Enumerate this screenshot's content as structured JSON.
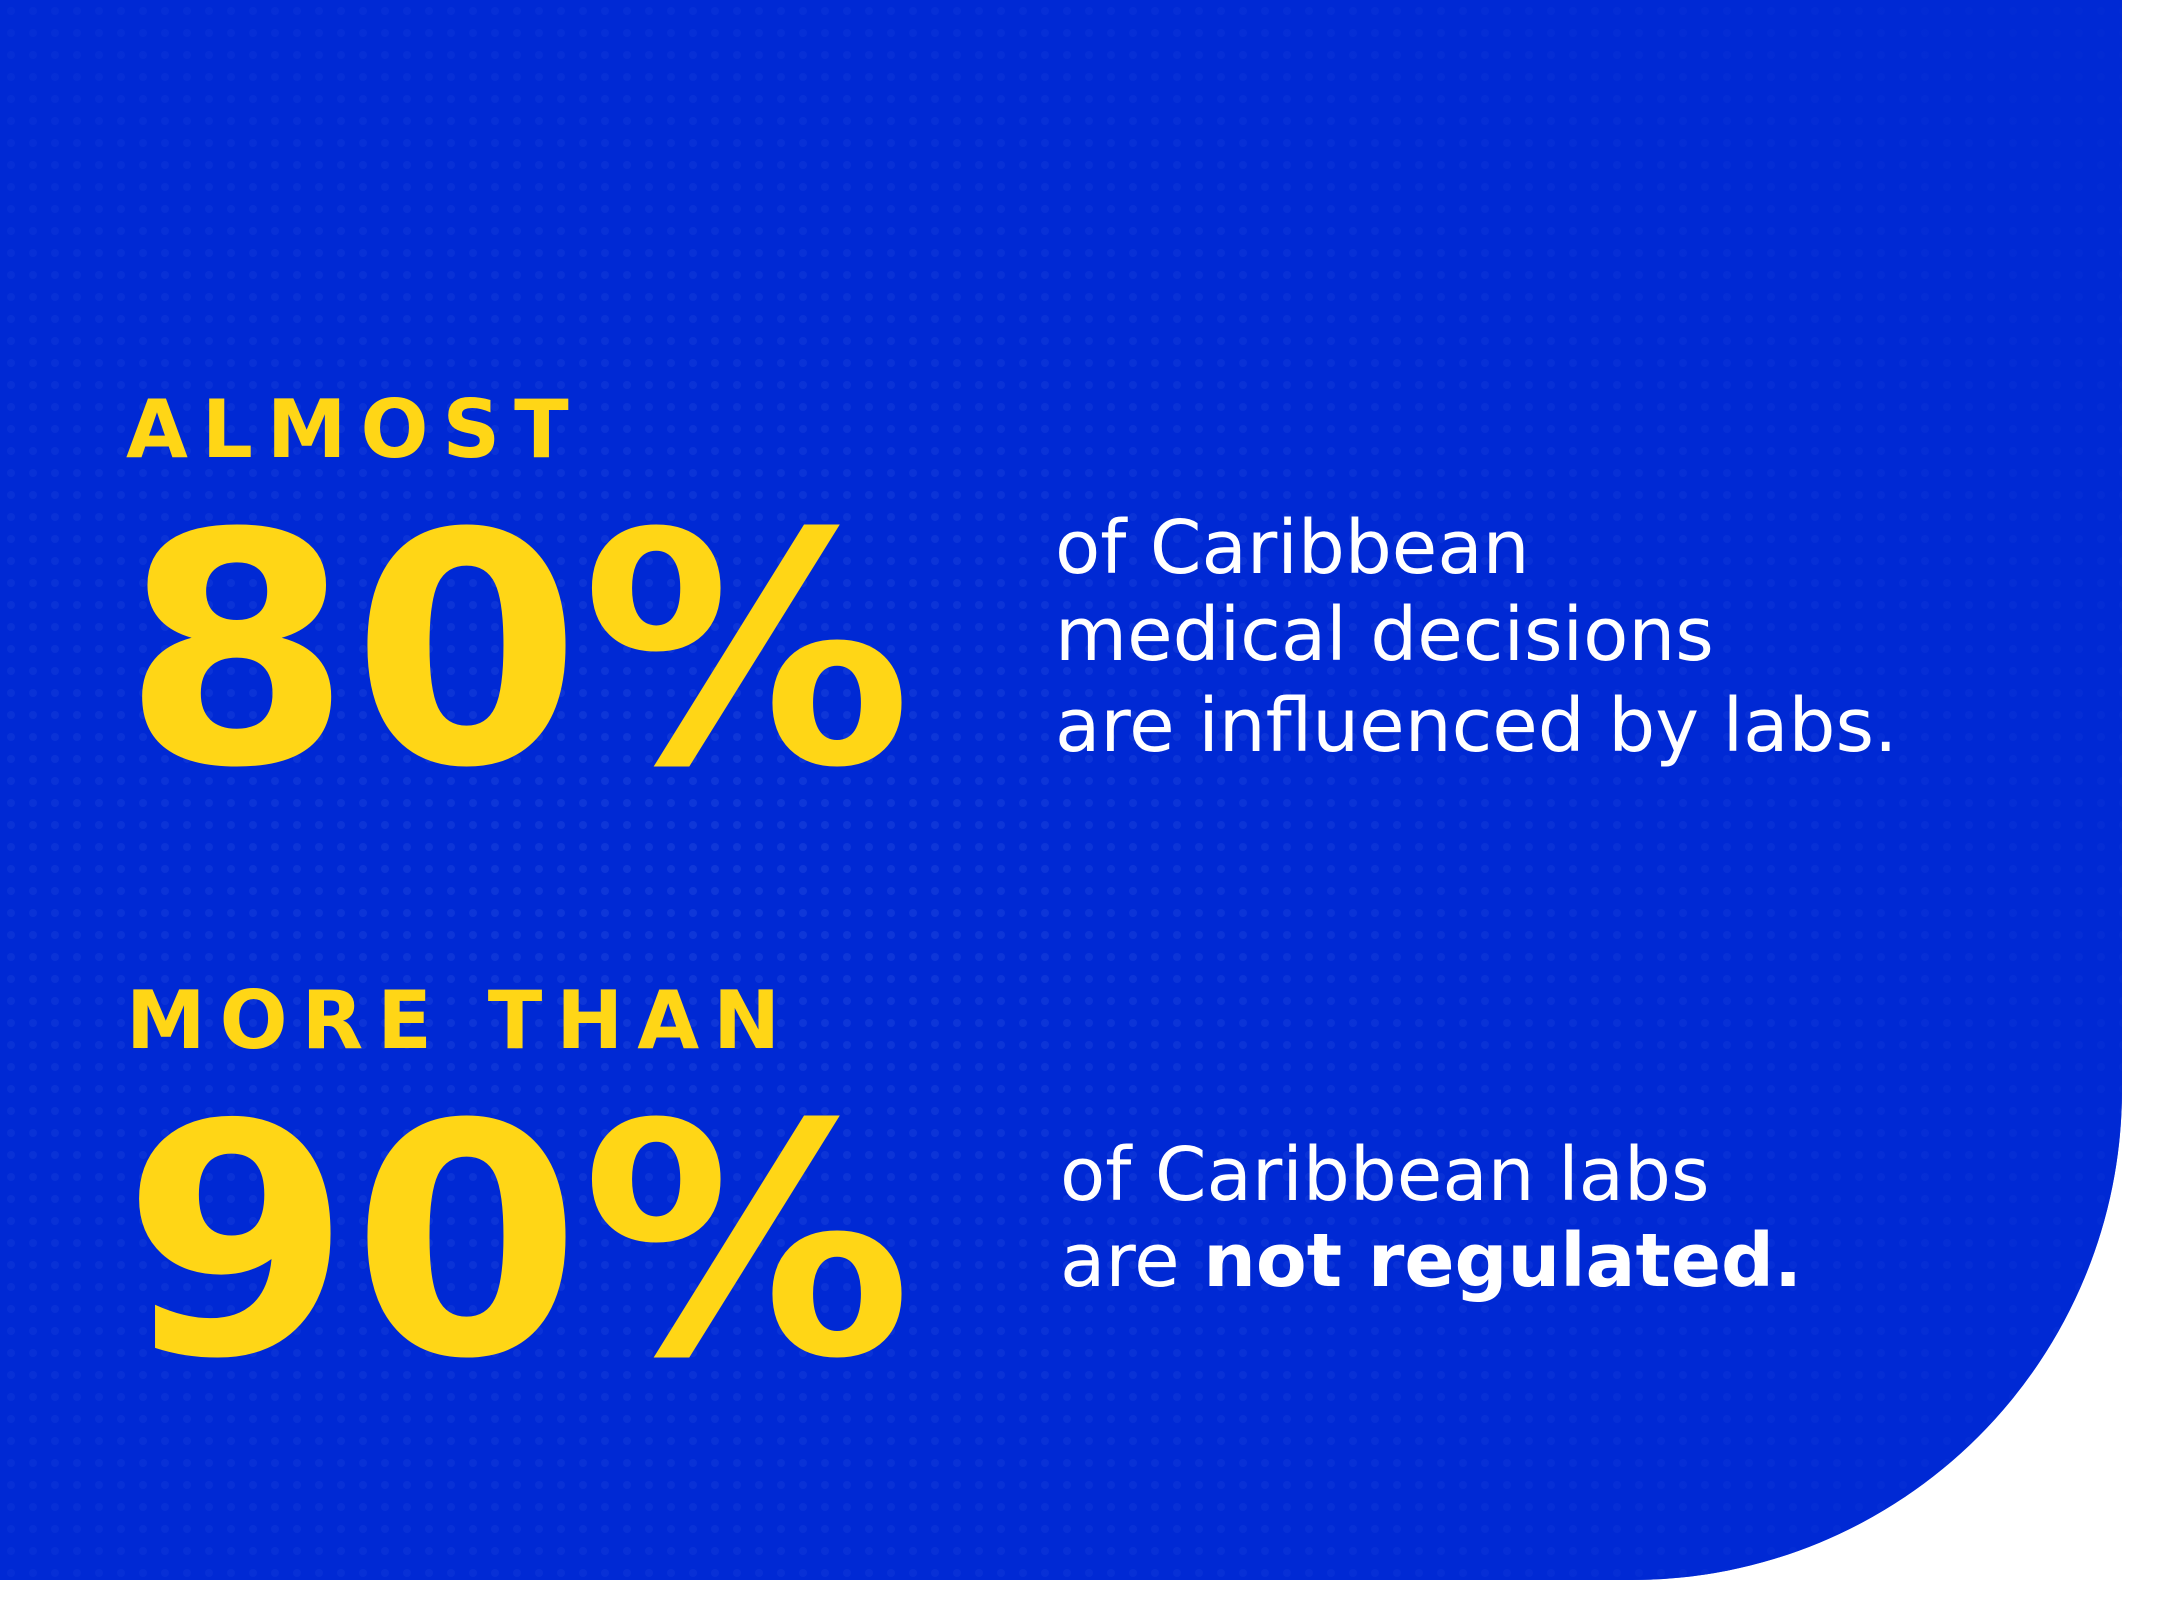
{
  "stats": [
    {
      "qualifier": "ALMOST",
      "figure": "80%",
      "lines": [
        "of Caribbean",
        "medical decisions",
        "are influenced by labs."
      ]
    },
    {
      "qualifier": "MORE THAN",
      "figure": "90%",
      "lines": [
        "of Caribbean labs"
      ],
      "last_line": {
        "plain": "are ",
        "bold": "not regulated."
      }
    }
  ]
}
